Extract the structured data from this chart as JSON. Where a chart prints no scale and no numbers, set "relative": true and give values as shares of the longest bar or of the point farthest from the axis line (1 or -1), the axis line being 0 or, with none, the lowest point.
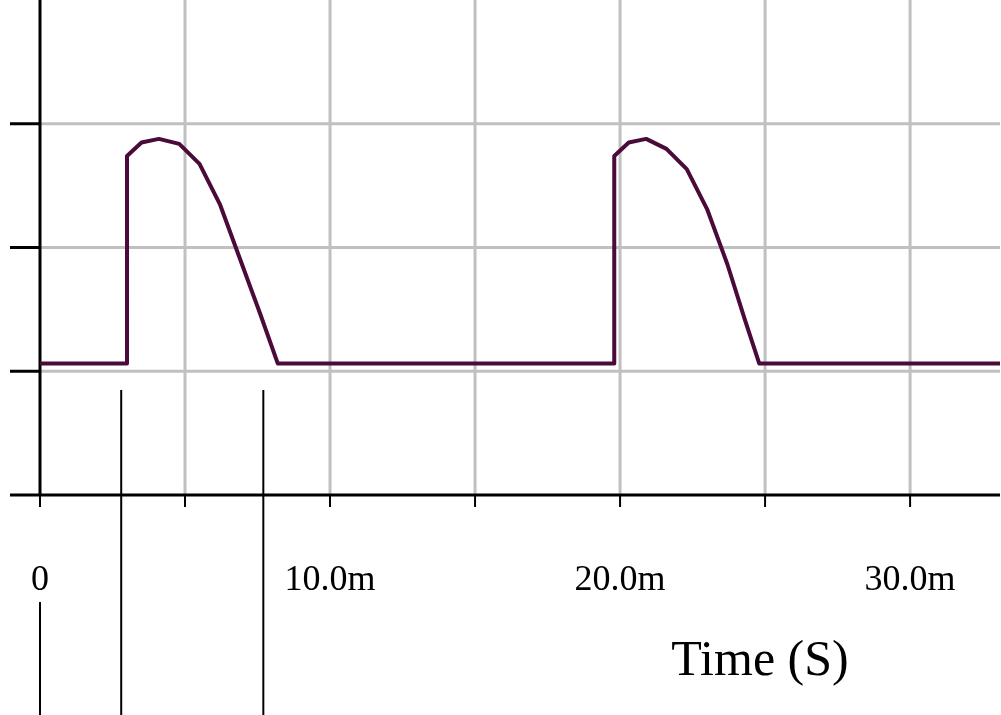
{
  "chart_data": {
    "type": "line",
    "relative": true,
    "xlabel": "Time (S)",
    "xlim": [
      0,
      33.1
    ],
    "xticks": [
      0,
      {
        "value": 5,
        "label": null
      },
      {
        "value": 10,
        "label": "10.0m"
      },
      {
        "value": 15,
        "label": null
      },
      {
        "value": 20,
        "label": "20.0m"
      },
      {
        "value": 25,
        "label": null
      },
      {
        "value": 30,
        "label": "30.0m"
      }
    ],
    "grid": true,
    "line_style": "solid",
    "series": [
      {
        "color": "#4a0a3a",
        "x": [
          0,
          3.0,
          3.0,
          3.5,
          4.1,
          4.8,
          5.5,
          6.2,
          6.9,
          7.6,
          8.2,
          19.8,
          19.8,
          20.3,
          20.9,
          21.6,
          22.3,
          23.0,
          23.7,
          24.3,
          24.8,
          33.1
        ],
        "values": [
          0.369,
          0.369,
          0.952,
          0.99,
          1,
          0.986,
          0.93,
          0.817,
          0.662,
          0.507,
          0.369,
          0.369,
          0.952,
          0.99,
          1,
          0.972,
          0.915,
          0.803,
          0.648,
          0.493,
          0.369,
          0.369
        ]
      }
    ],
    "ref_lines": [
      {
        "axis": "x",
        "value": 0,
        "color": "#000000"
      },
      {
        "axis": "x",
        "value": 2.8,
        "color": "#000000"
      },
      {
        "axis": "x",
        "value": 7.7,
        "color": "#000000"
      }
    ]
  }
}
